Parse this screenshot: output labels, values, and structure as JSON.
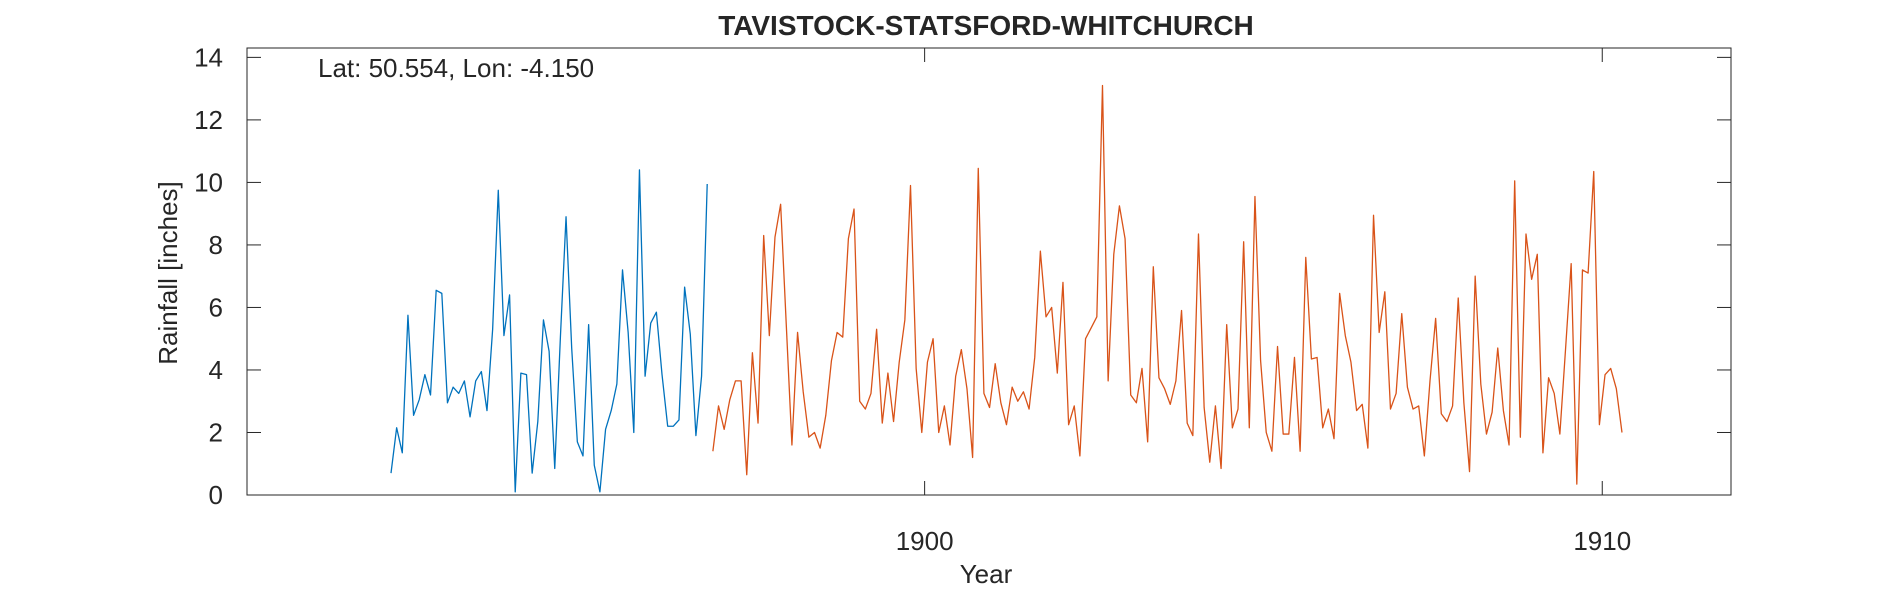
{
  "chart_data": {
    "type": "line",
    "title": "TAVISTOCK-STATSFORD-WHITCHURCH",
    "xlabel": "Year",
    "ylabel": "Rainfall [inches]",
    "annotation": "Lat: 50.554, Lon: -4.150",
    "xlim": [
      1890.0,
      1911.9
    ],
    "ylim": [
      0,
      14.3
    ],
    "yticks": [
      0,
      2,
      4,
      6,
      8,
      10,
      12,
      14
    ],
    "xticks": [
      1900,
      1910
    ],
    "grid": false,
    "box": true,
    "series": [
      {
        "color": "#0072BD",
        "x_start": 1892.125,
        "x_step": 0.08333,
        "values": [
          0.7,
          2.15,
          1.35,
          5.75,
          2.55,
          3.05,
          3.85,
          3.2,
          6.55,
          6.45,
          2.95,
          3.45,
          3.25,
          3.65,
          2.5,
          3.65,
          3.95,
          2.7,
          5.3,
          9.75,
          5.1,
          6.4,
          0.1,
          3.9,
          3.85,
          0.7,
          2.35,
          5.6,
          4.6,
          0.85,
          5.05,
          8.9,
          4.7,
          1.7,
          1.25,
          5.45,
          0.95,
          0.1,
          2.1,
          2.7,
          3.55,
          7.2,
          5.2,
          2.0,
          10.4,
          3.8,
          5.5,
          5.85,
          3.85,
          2.2,
          2.2,
          2.4,
          6.65,
          5.15,
          1.9,
          3.8,
          9.95
        ]
      },
      {
        "color": "#D95319",
        "x_start": 1896.875,
        "x_step": 0.08333,
        "values": [
          1.4,
          2.85,
          2.1,
          3.05,
          3.65,
          3.65,
          0.65,
          4.55,
          2.3,
          8.3,
          5.1,
          8.25,
          9.3,
          5.45,
          1.6,
          5.2,
          3.3,
          1.85,
          2.0,
          1.5,
          2.55,
          4.3,
          5.2,
          5.05,
          8.2,
          9.15,
          3.0,
          2.75,
          3.25,
          5.3,
          2.3,
          3.9,
          2.35,
          4.25,
          5.6,
          9.9,
          4.05,
          2.0,
          4.25,
          5.0,
          2.0,
          2.85,
          1.6,
          3.8,
          4.65,
          3.4,
          1.2,
          10.45,
          3.25,
          2.8,
          4.2,
          2.95,
          2.25,
          3.45,
          3.0,
          3.3,
          2.75,
          4.4,
          7.8,
          5.7,
          6.0,
          3.9,
          6.8,
          2.25,
          2.85,
          1.25,
          5.0,
          5.35,
          5.7,
          13.1,
          3.65,
          7.7,
          9.25,
          8.2,
          3.2,
          2.95,
          4.05,
          1.7,
          7.3,
          3.75,
          3.4,
          2.9,
          3.65,
          5.9,
          2.3,
          1.9,
          8.35,
          2.8,
          1.05,
          2.85,
          0.85,
          5.45,
          2.15,
          2.75,
          8.1,
          2.15,
          9.55,
          4.3,
          2.0,
          1.4,
          4.75,
          1.95,
          1.95,
          4.4,
          1.4,
          7.6,
          4.35,
          4.4,
          2.15,
          2.75,
          1.8,
          6.45,
          5.1,
          4.25,
          2.7,
          2.9,
          1.5,
          8.95,
          5.2,
          6.5,
          2.75,
          3.25,
          5.8,
          3.45,
          2.75,
          2.85,
          1.25,
          3.65,
          5.65,
          2.6,
          2.35,
          2.85,
          6.3,
          2.95,
          0.75,
          7.0,
          3.55,
          1.95,
          2.65,
          4.7,
          2.7,
          1.6,
          10.05,
          1.85,
          8.35,
          6.9,
          7.7,
          1.35,
          3.75,
          3.25,
          1.95,
          4.65,
          7.4,
          0.35,
          7.2,
          7.1,
          10.35,
          2.25,
          3.85,
          4.05,
          3.4,
          2.0
        ]
      }
    ]
  }
}
